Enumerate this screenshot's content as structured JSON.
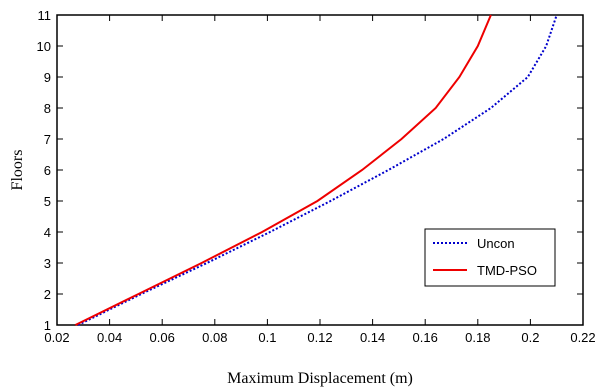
{
  "chart_data": {
    "type": "line",
    "xlabel": "Maximum Displacement (m)",
    "ylabel": "Floors",
    "xlim": [
      0.02,
      0.22
    ],
    "ylim": [
      1,
      11
    ],
    "xticks": [
      0.02,
      0.04,
      0.06,
      0.08,
      0.1,
      0.12,
      0.14,
      0.16,
      0.18,
      0.2,
      0.22
    ],
    "xtick_labels": [
      "0.02",
      "0.04",
      "0.06",
      "0.08",
      "0.1",
      "0.12",
      "0.14",
      "0.16",
      "0.18",
      "0.2",
      "0.22"
    ],
    "yticks": [
      1,
      2,
      3,
      4,
      5,
      6,
      7,
      8,
      9,
      10,
      11
    ],
    "ytick_labels": [
      "1",
      "2",
      "3",
      "4",
      "5",
      "6",
      "7",
      "8",
      "9",
      "10",
      "11"
    ],
    "grid": false,
    "legend": {
      "position": "lower-right"
    },
    "series": [
      {
        "name": "Uncon",
        "color": "#0000cc",
        "style": "dotted",
        "x": [
          0.028,
          0.052,
          0.077,
          0.101,
          0.124,
          0.146,
          0.167,
          0.185,
          0.199,
          0.206,
          0.21
        ],
        "y": [
          1,
          2,
          3,
          4,
          5,
          6,
          7,
          8,
          9,
          10,
          11
        ]
      },
      {
        "name": "TMD-PSO",
        "color": "#ee0000",
        "style": "solid",
        "x": [
          0.027,
          0.051,
          0.075,
          0.098,
          0.119,
          0.136,
          0.151,
          0.164,
          0.173,
          0.18,
          0.185
        ],
        "y": [
          1,
          2,
          3,
          4,
          5,
          6,
          7,
          8,
          9,
          10,
          11
        ]
      }
    ]
  }
}
